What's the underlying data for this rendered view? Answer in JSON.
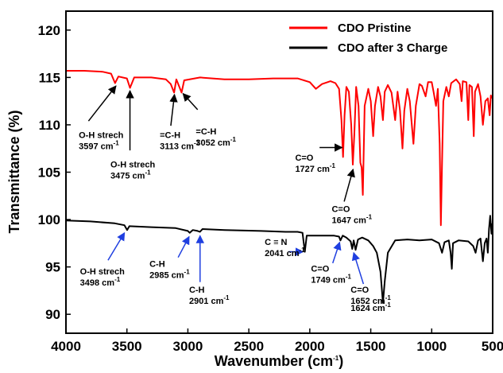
{
  "chart_data": {
    "type": "line",
    "xlabel": "Wavenumber (cm",
    "xlabel_sup": "-1",
    "xlabel_close": ")",
    "ylabel": "Transmittance (%)",
    "xlim": [
      4000,
      500
    ],
    "ylim": [
      88,
      122
    ],
    "x_ticks": [
      4000,
      3500,
      3000,
      2500,
      2000,
      1500,
      1000,
      500
    ],
    "y_ticks": [
      90,
      95,
      100,
      105,
      110,
      115,
      120
    ],
    "legend_position": "top-right",
    "series": [
      {
        "name": "CDO Pristine",
        "color": "#ff0000",
        "points": [
          [
            4000,
            115.7
          ],
          [
            3850,
            115.7
          ],
          [
            3700,
            115.6
          ],
          [
            3630,
            115.4
          ],
          [
            3597,
            114.4
          ],
          [
            3570,
            115.1
          ],
          [
            3500,
            114.9
          ],
          [
            3475,
            113.9
          ],
          [
            3440,
            115.0
          ],
          [
            3300,
            115.0
          ],
          [
            3180,
            114.8
          ],
          [
            3140,
            114.3
          ],
          [
            3113,
            113.4
          ],
          [
            3095,
            114.8
          ],
          [
            3070,
            114.0
          ],
          [
            3052,
            113.4
          ],
          [
            3030,
            114.7
          ],
          [
            2900,
            115.0
          ],
          [
            2700,
            114.8
          ],
          [
            2500,
            114.8
          ],
          [
            2300,
            114.9
          ],
          [
            2100,
            114.9
          ],
          [
            2000,
            114.5
          ],
          [
            1950,
            113.8
          ],
          [
            1900,
            114.3
          ],
          [
            1830,
            114.6
          ],
          [
            1790,
            114.4
          ],
          [
            1760,
            113.8
          ],
          [
            1740,
            110.5
          ],
          [
            1727,
            106.6
          ],
          [
            1715,
            111.0
          ],
          [
            1700,
            114.0
          ],
          [
            1680,
            113.5
          ],
          [
            1660,
            110.0
          ],
          [
            1647,
            105.8
          ],
          [
            1635,
            109.0
          ],
          [
            1620,
            114.0
          ],
          [
            1600,
            112.0
          ],
          [
            1585,
            106.0
          ],
          [
            1575,
            105.5
          ],
          [
            1565,
            102.6
          ],
          [
            1550,
            112.0
          ],
          [
            1520,
            113.8
          ],
          [
            1500,
            112.5
          ],
          [
            1480,
            108.8
          ],
          [
            1465,
            112.0
          ],
          [
            1440,
            114.0
          ],
          [
            1420,
            113.0
          ],
          [
            1400,
            110.5
          ],
          [
            1385,
            113.5
          ],
          [
            1360,
            114.2
          ],
          [
            1330,
            113.4
          ],
          [
            1300,
            110.5
          ],
          [
            1280,
            113.5
          ],
          [
            1260,
            111.5
          ],
          [
            1240,
            107.5
          ],
          [
            1225,
            111.5
          ],
          [
            1200,
            113.8
          ],
          [
            1180,
            112.5
          ],
          [
            1150,
            108.0
          ],
          [
            1130,
            112.0
          ],
          [
            1100,
            114.3
          ],
          [
            1080,
            114.1
          ],
          [
            1050,
            113.0
          ],
          [
            1030,
            114.5
          ],
          [
            1000,
            114.5
          ],
          [
            985,
            113.5
          ],
          [
            965,
            112.0
          ],
          [
            950,
            113.8
          ],
          [
            935,
            108.0
          ],
          [
            925,
            99.4
          ],
          [
            915,
            106.0
          ],
          [
            905,
            112.5
          ],
          [
            880,
            114.0
          ],
          [
            860,
            113.0
          ],
          [
            840,
            114.4
          ],
          [
            800,
            114.8
          ],
          [
            770,
            114.3
          ],
          [
            755,
            112.5
          ],
          [
            745,
            114.6
          ],
          [
            715,
            114.5
          ],
          [
            700,
            110.5
          ],
          [
            690,
            114.2
          ],
          [
            670,
            114.0
          ],
          [
            655,
            108.8
          ],
          [
            645,
            113.5
          ],
          [
            620,
            114.3
          ],
          [
            600,
            113.0
          ],
          [
            580,
            110.0
          ],
          [
            560,
            112.5
          ],
          [
            540,
            112.8
          ],
          [
            525,
            111.0
          ],
          [
            515,
            113.1
          ],
          [
            505,
            112.8
          ]
        ]
      },
      {
        "name": "CDO after 3 Charge",
        "color": "#000000",
        "points": [
          [
            4000,
            99.9
          ],
          [
            3800,
            99.8
          ],
          [
            3600,
            99.6
          ],
          [
            3520,
            99.4
          ],
          [
            3498,
            98.9
          ],
          [
            3480,
            99.3
          ],
          [
            3300,
            99.2
          ],
          [
            3100,
            99.1
          ],
          [
            3000,
            98.8
          ],
          [
            2985,
            98.6
          ],
          [
            2960,
            98.9
          ],
          [
            2920,
            98.8
          ],
          [
            2901,
            98.7
          ],
          [
            2880,
            99.0
          ],
          [
            2700,
            98.9
          ],
          [
            2400,
            98.8
          ],
          [
            2200,
            98.7
          ],
          [
            2100,
            98.7
          ],
          [
            2060,
            98.6
          ],
          [
            2041,
            96.6
          ],
          [
            2025,
            98.3
          ],
          [
            1900,
            98.3
          ],
          [
            1800,
            98.3
          ],
          [
            1760,
            98.2
          ],
          [
            1749,
            97.8
          ],
          [
            1730,
            98.3
          ],
          [
            1700,
            98.1
          ],
          [
            1665,
            97.7
          ],
          [
            1652,
            96.9
          ],
          [
            1640,
            97.8
          ],
          [
            1624,
            96.8
          ],
          [
            1605,
            97.9
          ],
          [
            1570,
            98.1
          ],
          [
            1520,
            97.8
          ],
          [
            1480,
            97.2
          ],
          [
            1450,
            96.5
          ],
          [
            1420,
            94.5
          ],
          [
            1400,
            91.2
          ],
          [
            1385,
            93.5
          ],
          [
            1360,
            96.5
          ],
          [
            1300,
            97.8
          ],
          [
            1200,
            97.9
          ],
          [
            1100,
            97.8
          ],
          [
            1000,
            97.9
          ],
          [
            940,
            97.5
          ],
          [
            915,
            96.5
          ],
          [
            895,
            97.6
          ],
          [
            860,
            97.8
          ],
          [
            845,
            96.5
          ],
          [
            835,
            94.8
          ],
          [
            825,
            97.5
          ],
          [
            780,
            97.8
          ],
          [
            700,
            97.7
          ],
          [
            660,
            97.2
          ],
          [
            640,
            96.5
          ],
          [
            620,
            97.8
          ],
          [
            600,
            98.0
          ],
          [
            580,
            95.6
          ],
          [
            565,
            97.5
          ],
          [
            550,
            98.0
          ],
          [
            540,
            96.5
          ],
          [
            530,
            99.0
          ],
          [
            520,
            100.4
          ],
          [
            510,
            98.5
          ],
          [
            505,
            99.6
          ]
        ]
      }
    ],
    "annotations": [
      {
        "lines": [
          "O-H strech",
          "3597 cm"
        ],
        "sups": [
          null,
          "-1"
        ],
        "color": "#000000",
        "arrow_from": [
          3815,
          110.4
        ],
        "arrow_to": [
          3590,
          114.1
        ],
        "text_at": [
          3895,
          108.6
        ]
      },
      {
        "lines": [
          "O-H strech",
          "3475 cm"
        ],
        "sups": [
          null,
          "-1"
        ],
        "color": "#000000",
        "arrow_from": [
          3475,
          107.3
        ],
        "arrow_to": [
          3475,
          113.6
        ],
        "text_at": [
          3635,
          105.5
        ]
      },
      {
        "lines": [
          "=C-H",
          "3113 cm"
        ],
        "sups": [
          null,
          "-1"
        ],
        "color": "#000000",
        "arrow_from": [
          3140,
          109.9
        ],
        "arrow_to": [
          3110,
          113.2
        ],
        "text_at": [
          3230,
          108.6
        ]
      },
      {
        "lines": [
          "=C-H",
          "3052 cm"
        ],
        "sups": [
          null,
          "-1"
        ],
        "color": "#000000",
        "arrow_from": [
          2920,
          111.6
        ],
        "arrow_to": [
          3040,
          113.3
        ],
        "text_at": [
          2935,
          109.0
        ]
      },
      {
        "lines": [
          "C=O",
          "1727 cm"
        ],
        "sups": [
          null,
          "-1"
        ],
        "color": "#000000",
        "arrow_from": [
          1920,
          107.6
        ],
        "arrow_to": [
          1735,
          107.6
        ],
        "text_at": [
          2120,
          106.2
        ]
      },
      {
        "lines": [
          "C=O",
          "1647 cm"
        ],
        "sups": [
          null,
          "-1"
        ],
        "color": "#000000",
        "arrow_from": [
          1718,
          101.9
        ],
        "arrow_to": [
          1645,
          105.3
        ],
        "text_at": [
          1820,
          100.8
        ]
      },
      {
        "lines": [
          "O-H strech",
          "3498 cm"
        ],
        "sups": [
          null,
          "-1"
        ],
        "color": "#1f3fe0",
        "arrow_from": [
          3655,
          95.7
        ],
        "arrow_to": [
          3520,
          98.6
        ],
        "text_at": [
          3885,
          94.2
        ]
      },
      {
        "lines": [
          "C-H",
          "2985 cm"
        ],
        "sups": [
          null,
          "-1"
        ],
        "color": "#1f3fe0",
        "arrow_from": [
          3080,
          96.0
        ],
        "arrow_to": [
          2990,
          98.2
        ],
        "text_at": [
          3315,
          95.0
        ]
      },
      {
        "lines": [
          "C-H",
          "2901 cm"
        ],
        "sups": [
          null,
          "-1"
        ],
        "color": "#1f3fe0",
        "arrow_from": [
          2900,
          93.4
        ],
        "arrow_to": [
          2900,
          98.3
        ],
        "text_at": [
          2990,
          92.3
        ]
      },
      {
        "lines": [
          "C ≡ N",
          "2041 cm"
        ],
        "sups": [
          null,
          "-1"
        ],
        "color": "#1f3fe0",
        "arrow_from": [
          2175,
          96.6
        ],
        "arrow_to": [
          2055,
          96.6
        ],
        "text_at": [
          2370,
          97.3
        ]
      },
      {
        "lines": [
          "C=O",
          "1749 cm"
        ],
        "sups": [
          null,
          "-1"
        ],
        "color": "#1f3fe0",
        "arrow_from": [
          1812,
          95.4
        ],
        "arrow_to": [
          1755,
          97.6
        ],
        "text_at": [
          1990,
          94.5
        ]
      },
      {
        "lines": [
          "C=O",
          "1652 cm",
          "1624 cm"
        ],
        "sups": [
          null,
          "-1",
          "-1"
        ],
        "color": "#1f3fe0",
        "arrow_from": [
          1560,
          93.2
        ],
        "arrow_to": [
          1640,
          96.5
        ],
        "text_at": [
          1665,
          92.3
        ]
      }
    ]
  }
}
